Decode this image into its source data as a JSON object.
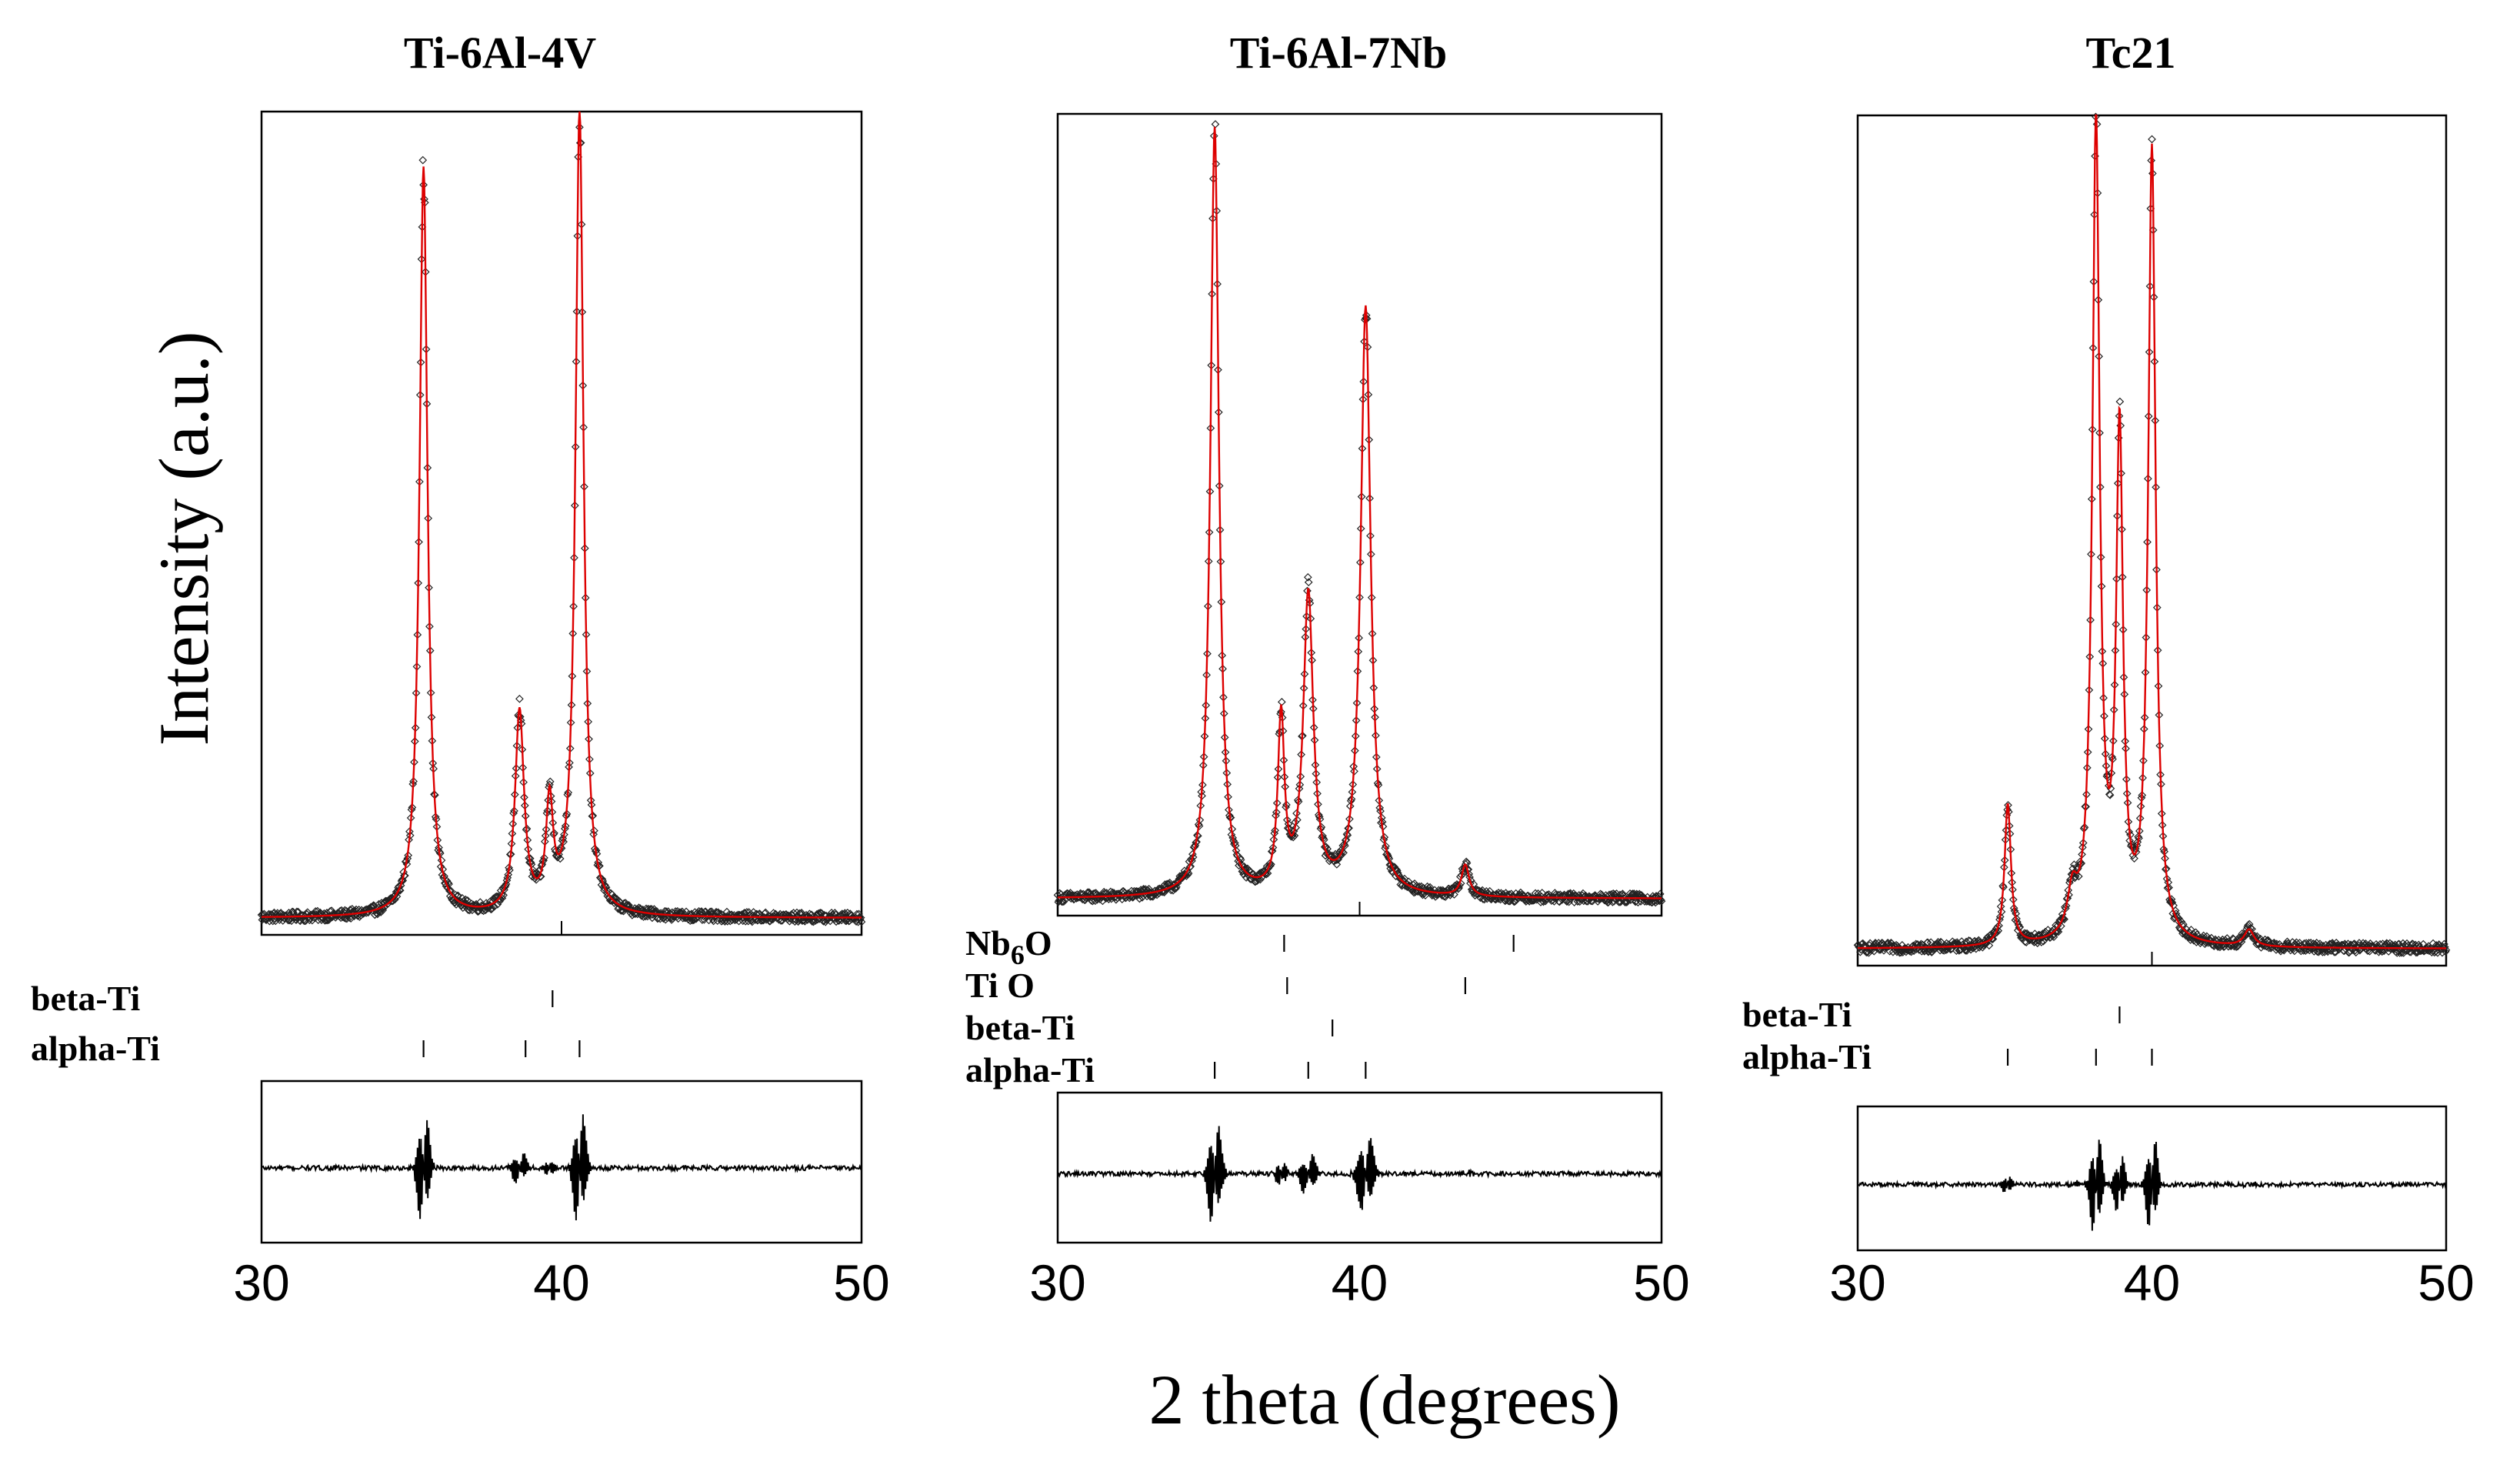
{
  "figure": {
    "ylabel": "Intensity (a.u.)",
    "xlabel": "2 theta (degrees)"
  },
  "chart_data": [
    {
      "type": "line",
      "title": "Ti-6Al-4V",
      "xlabel": "2 theta (degrees)",
      "ylabel": "Intensity (a.u.)",
      "xlim": [
        30,
        50
      ],
      "ylim": [
        0,
        1
      ],
      "xticks": [
        "30",
        "40",
        "50"
      ],
      "peaks": [
        {
          "pos": 35.4,
          "height": 0.93,
          "width": 0.16
        },
        {
          "pos": 38.6,
          "height": 0.25,
          "width": 0.18
        },
        {
          "pos": 39.6,
          "height": 0.13,
          "width": 0.14
        },
        {
          "pos": 40.6,
          "height": 1.0,
          "width": 0.16
        }
      ],
      "phases": [
        {
          "name": "beta-Ti",
          "positions": [
            39.7
          ]
        },
        {
          "name": "alpha-Ti",
          "positions": [
            35.4,
            38.8,
            40.6
          ]
        }
      ],
      "series": [
        {
          "name": "observed",
          "style": "open-diamond",
          "color": "#000000"
        },
        {
          "name": "calculated",
          "style": "line",
          "color": "#dd0000"
        },
        {
          "name": "difference",
          "style": "line",
          "color": "#000000"
        }
      ]
    },
    {
      "type": "line",
      "title": "Ti-6Al-7Nb",
      "xlabel": "2 theta (degrees)",
      "ylabel": "Intensity (a.u.)",
      "xlim": [
        30,
        50
      ],
      "ylim": [
        0,
        1
      ],
      "xticks": [
        "30",
        "40",
        "50"
      ],
      "peaks": [
        {
          "pos": 35.2,
          "height": 0.98,
          "width": 0.17
        },
        {
          "pos": 37.4,
          "height": 0.22,
          "width": 0.13
        },
        {
          "pos": 38.3,
          "height": 0.38,
          "width": 0.2
        },
        {
          "pos": 40.2,
          "height": 0.75,
          "width": 0.2
        },
        {
          "pos": 43.5,
          "height": 0.04,
          "width": 0.15
        }
      ],
      "phases": [
        {
          "name": "Nb6O",
          "positions": [
            37.5,
            45.1
          ]
        },
        {
          "name": "Ti O",
          "positions": [
            37.6,
            43.5
          ]
        },
        {
          "name": "beta-Ti",
          "positions": [
            39.1
          ]
        },
        {
          "name": "alpha-Ti",
          "positions": [
            35.2,
            38.3,
            40.2
          ]
        }
      ],
      "series": [
        {
          "name": "observed",
          "style": "open-diamond",
          "color": "#000000"
        },
        {
          "name": "calculated",
          "style": "line",
          "color": "#dd0000"
        },
        {
          "name": "difference",
          "style": "line",
          "color": "#000000"
        }
      ]
    },
    {
      "type": "line",
      "title": "Tc21",
      "xlabel": "2 theta (degrees)",
      "ylabel": "Intensity (a.u.)",
      "xlim": [
        30,
        50
      ],
      "ylim": [
        0,
        1
      ],
      "xticks": [
        "30",
        "40",
        "50"
      ],
      "peaks": [
        {
          "pos": 35.1,
          "height": 0.17,
          "width": 0.13
        },
        {
          "pos": 37.3,
          "height": 0.05,
          "width": 0.2
        },
        {
          "pos": 38.1,
          "height": 0.98,
          "width": 0.15
        },
        {
          "pos": 38.9,
          "height": 0.6,
          "width": 0.14
        },
        {
          "pos": 40.0,
          "height": 0.95,
          "width": 0.15
        },
        {
          "pos": 43.3,
          "height": 0.02,
          "width": 0.2
        }
      ],
      "phases": [
        {
          "name": "beta-Ti",
          "positions": [
            38.9
          ]
        },
        {
          "name": "alpha-Ti",
          "positions": [
            35.1,
            38.1,
            40.0
          ]
        }
      ],
      "series": [
        {
          "name": "observed",
          "style": "open-diamond",
          "color": "#000000"
        },
        {
          "name": "calculated",
          "style": "line",
          "color": "#dd0000"
        },
        {
          "name": "difference",
          "style": "line",
          "color": "#000000"
        }
      ]
    }
  ]
}
